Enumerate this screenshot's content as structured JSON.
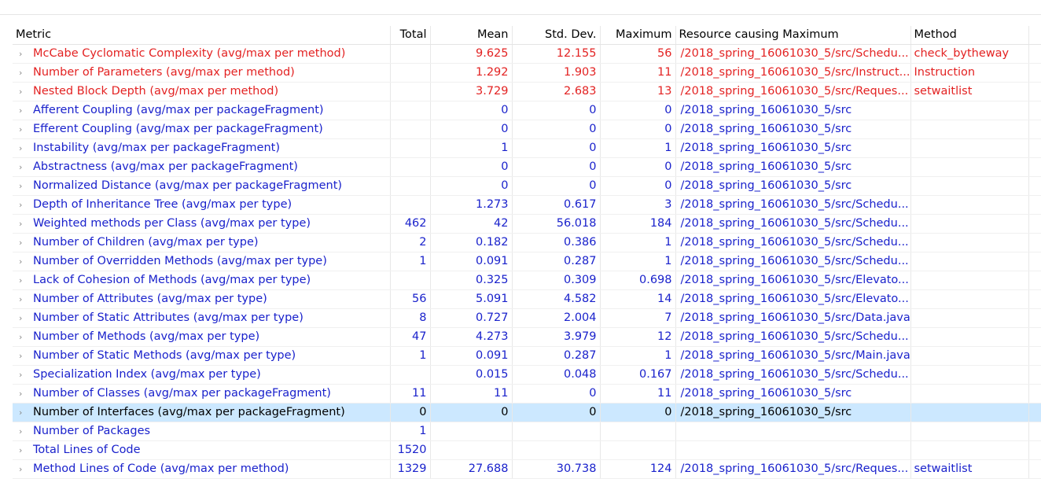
{
  "columns": {
    "metric": "Metric",
    "total": "Total",
    "mean": "Mean",
    "std": "Std. Dev.",
    "max": "Maximum",
    "resource": "Resource causing Maximum",
    "method": "Method"
  },
  "expander_glyph": "›",
  "rows": [
    {
      "metric": "McCabe Cyclomatic Complexity (avg/max per method)",
      "total": "",
      "mean": "9.625",
      "std": "12.155",
      "max": "56",
      "resource": "/2018_spring_16061030_5/src/Schedu...",
      "method": "check_bytheway",
      "color": "red"
    },
    {
      "metric": "Number of Parameters (avg/max per method)",
      "total": "",
      "mean": "1.292",
      "std": "1.903",
      "max": "11",
      "resource": "/2018_spring_16061030_5/src/Instruct...",
      "method": "Instruction",
      "color": "red"
    },
    {
      "metric": "Nested Block Depth (avg/max per method)",
      "total": "",
      "mean": "3.729",
      "std": "2.683",
      "max": "13",
      "resource": "/2018_spring_16061030_5/src/Reques...",
      "method": "setwaitlist",
      "color": "red"
    },
    {
      "metric": "Afferent Coupling (avg/max per packageFragment)",
      "total": "",
      "mean": "0",
      "std": "0",
      "max": "0",
      "resource": "/2018_spring_16061030_5/src",
      "method": "",
      "color": "blue"
    },
    {
      "metric": "Efferent Coupling (avg/max per packageFragment)",
      "total": "",
      "mean": "0",
      "std": "0",
      "max": "0",
      "resource": "/2018_spring_16061030_5/src",
      "method": "",
      "color": "blue"
    },
    {
      "metric": "Instability (avg/max per packageFragment)",
      "total": "",
      "mean": "1",
      "std": "0",
      "max": "1",
      "resource": "/2018_spring_16061030_5/src",
      "method": "",
      "color": "blue"
    },
    {
      "metric": "Abstractness (avg/max per packageFragment)",
      "total": "",
      "mean": "0",
      "std": "0",
      "max": "0",
      "resource": "/2018_spring_16061030_5/src",
      "method": "",
      "color": "blue"
    },
    {
      "metric": "Normalized Distance (avg/max per packageFragment)",
      "total": "",
      "mean": "0",
      "std": "0",
      "max": "0",
      "resource": "/2018_spring_16061030_5/src",
      "method": "",
      "color": "blue"
    },
    {
      "metric": "Depth of Inheritance Tree (avg/max per type)",
      "total": "",
      "mean": "1.273",
      "std": "0.617",
      "max": "3",
      "resource": "/2018_spring_16061030_5/src/Schedu...",
      "method": "",
      "color": "blue"
    },
    {
      "metric": "Weighted methods per Class (avg/max per type)",
      "total": "462",
      "mean": "42",
      "std": "56.018",
      "max": "184",
      "resource": "/2018_spring_16061030_5/src/Schedu...",
      "method": "",
      "color": "blue"
    },
    {
      "metric": "Number of Children (avg/max per type)",
      "total": "2",
      "mean": "0.182",
      "std": "0.386",
      "max": "1",
      "resource": "/2018_spring_16061030_5/src/Schedu...",
      "method": "",
      "color": "blue"
    },
    {
      "metric": "Number of Overridden Methods (avg/max per type)",
      "total": "1",
      "mean": "0.091",
      "std": "0.287",
      "max": "1",
      "resource": "/2018_spring_16061030_5/src/Schedu...",
      "method": "",
      "color": "blue"
    },
    {
      "metric": "Lack of Cohesion of Methods (avg/max per type)",
      "total": "",
      "mean": "0.325",
      "std": "0.309",
      "max": "0.698",
      "resource": "/2018_spring_16061030_5/src/Elevato...",
      "method": "",
      "color": "blue"
    },
    {
      "metric": "Number of Attributes (avg/max per type)",
      "total": "56",
      "mean": "5.091",
      "std": "4.582",
      "max": "14",
      "resource": "/2018_spring_16061030_5/src/Elevato...",
      "method": "",
      "color": "blue"
    },
    {
      "metric": "Number of Static Attributes (avg/max per type)",
      "total": "8",
      "mean": "0.727",
      "std": "2.004",
      "max": "7",
      "resource": "/2018_spring_16061030_5/src/Data.java",
      "method": "",
      "color": "blue"
    },
    {
      "metric": "Number of Methods (avg/max per type)",
      "total": "47",
      "mean": "4.273",
      "std": "3.979",
      "max": "12",
      "resource": "/2018_spring_16061030_5/src/Schedu...",
      "method": "",
      "color": "blue"
    },
    {
      "metric": "Number of Static Methods (avg/max per type)",
      "total": "1",
      "mean": "0.091",
      "std": "0.287",
      "max": "1",
      "resource": "/2018_spring_16061030_5/src/Main.java",
      "method": "",
      "color": "blue"
    },
    {
      "metric": "Specialization Index (avg/max per type)",
      "total": "",
      "mean": "0.015",
      "std": "0.048",
      "max": "0.167",
      "resource": "/2018_spring_16061030_5/src/Schedu...",
      "method": "",
      "color": "blue"
    },
    {
      "metric": "Number of Classes (avg/max per packageFragment)",
      "total": "11",
      "mean": "11",
      "std": "0",
      "max": "11",
      "resource": "/2018_spring_16061030_5/src",
      "method": "",
      "color": "blue"
    },
    {
      "metric": "Number of Interfaces (avg/max per packageFragment)",
      "total": "0",
      "mean": "0",
      "std": "0",
      "max": "0",
      "resource": "/2018_spring_16061030_5/src",
      "method": "",
      "color": "selected"
    },
    {
      "metric": "Number of Packages",
      "total": "1",
      "mean": "",
      "std": "",
      "max": "",
      "resource": "",
      "method": "",
      "color": "blue"
    },
    {
      "metric": "Total Lines of Code",
      "total": "1520",
      "mean": "",
      "std": "",
      "max": "",
      "resource": "",
      "method": "",
      "color": "blue"
    },
    {
      "metric": "Method Lines of Code (avg/max per method)",
      "total": "1329",
      "mean": "27.688",
      "std": "30.738",
      "max": "124",
      "resource": "/2018_spring_16061030_5/src/Reques...",
      "method": "setwaitlist",
      "color": "blue"
    }
  ]
}
